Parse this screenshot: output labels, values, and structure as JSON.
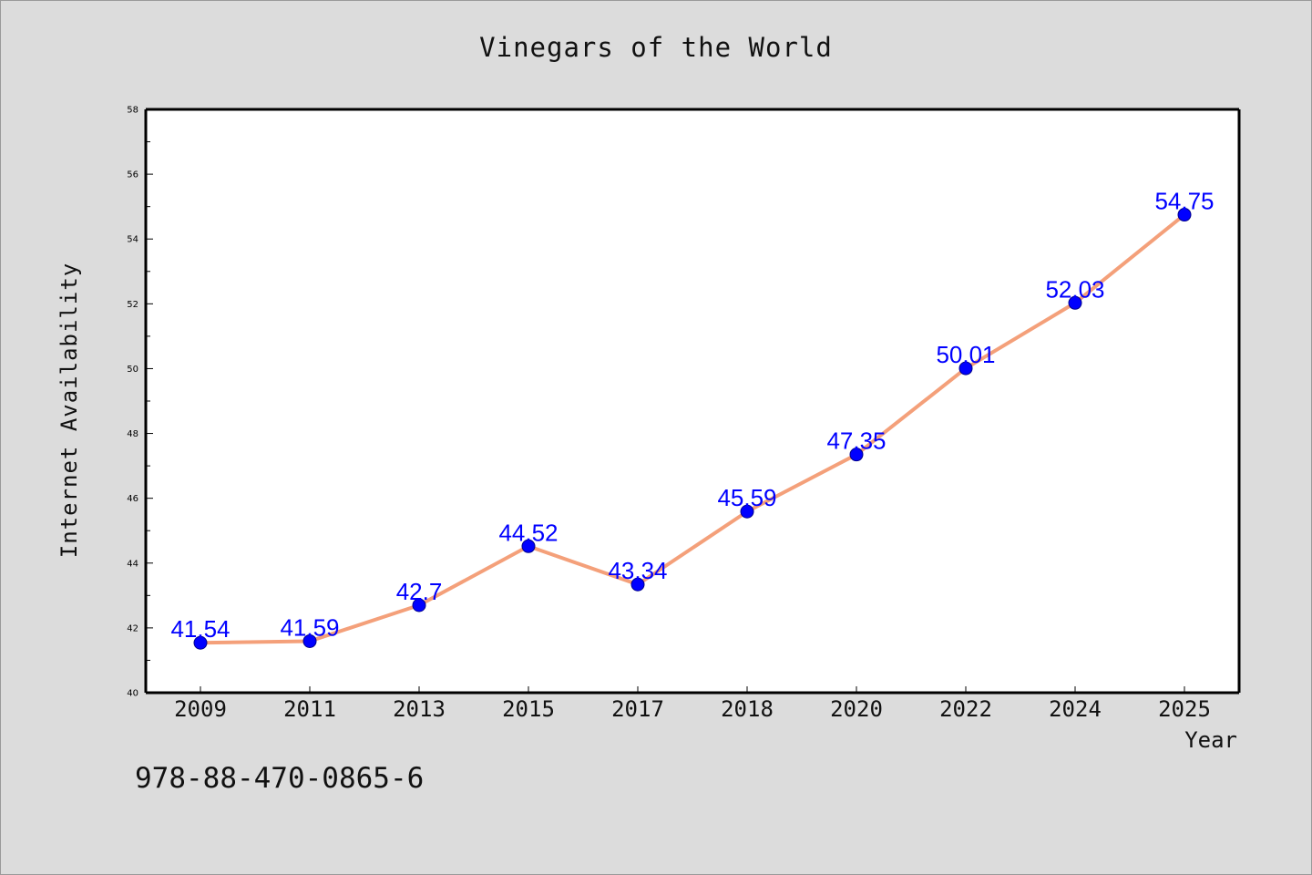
{
  "chart_data": {
    "type": "line",
    "title": "Vinegars of the World",
    "xlabel": "Year",
    "ylabel": "Internet Availability",
    "categories": [
      "2009",
      "2011",
      "2013",
      "2015",
      "2017",
      "2018",
      "2020",
      "2022",
      "2024",
      "2025"
    ],
    "series": [
      {
        "values": [
          41.54,
          41.59,
          42.7,
          44.52,
          43.34,
          45.59,
          47.35,
          50.01,
          52.03,
          54.75
        ],
        "labels": [
          "41.54",
          "41.59",
          "42.7",
          "44.52",
          "43.34",
          "45.59",
          "47.35",
          "50.01",
          "52.03",
          "54.75"
        ],
        "line_color": "#f4a07a",
        "marker_color": "#0000ff"
      }
    ],
    "ylim": [
      40,
      58
    ],
    "yticks": [
      "40",
      "42",
      "44",
      "46",
      "48",
      "50",
      "52",
      "54",
      "56",
      "58"
    ],
    "grid": false,
    "legend": "none",
    "label_color": "#0000ff"
  },
  "annotation": "978-88-470-0865-6"
}
